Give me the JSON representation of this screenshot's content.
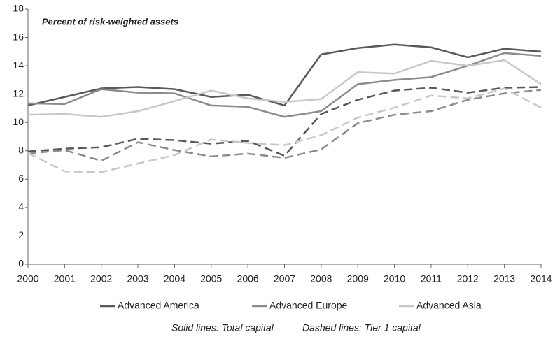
{
  "chart_data": {
    "type": "line",
    "title": "Percent of risk-weighted assets",
    "annotations": [
      "Solid lines: Total capital",
      "Dashed lines: Tier 1 capital"
    ],
    "x": [
      2000,
      2001,
      2002,
      2003,
      2004,
      2005,
      2006,
      2007,
      2008,
      2009,
      2010,
      2011,
      2012,
      2013,
      2014
    ],
    "xlim": [
      2000,
      2014
    ],
    "xticks": [
      2000,
      2001,
      2002,
      2003,
      2004,
      2005,
      2006,
      2007,
      2008,
      2009,
      2010,
      2011,
      2012,
      2013,
      2014
    ],
    "ylim": [
      0,
      18
    ],
    "yticks": [
      0,
      2,
      4,
      6,
      8,
      10,
      12,
      14,
      16,
      18
    ],
    "grid": false,
    "legend": "bottom",
    "series": [
      {
        "name": "Advanced America",
        "color": "#595959",
        "dashed": false,
        "values": [
          11.2,
          11.8,
          12.4,
          12.5,
          12.35,
          11.8,
          11.95,
          11.2,
          14.8,
          15.25,
          15.5,
          15.3,
          14.6,
          15.2,
          15.0
        ]
      },
      {
        "name": "Advanced Europe",
        "color": "#8c8c8c",
        "dashed": false,
        "values": [
          11.35,
          11.3,
          12.35,
          12.1,
          12.05,
          11.2,
          11.1,
          10.4,
          10.8,
          12.7,
          13.0,
          13.2,
          14.0,
          14.9,
          14.7
        ]
      },
      {
        "name": "Advanced Asia",
        "color": "#c8c8c8",
        "dashed": false,
        "values": [
          10.55,
          10.6,
          10.4,
          10.8,
          11.5,
          12.25,
          11.7,
          11.45,
          11.65,
          13.55,
          13.45,
          14.35,
          14.0,
          14.4,
          12.7
        ]
      },
      {
        "color": "#595959",
        "dashed": true,
        "values": [
          7.95,
          8.15,
          8.25,
          8.85,
          8.75,
          8.5,
          8.7,
          7.65,
          10.6,
          11.6,
          12.25,
          12.45,
          12.1,
          12.45,
          12.5
        ]
      },
      {
        "color": "#8c8c8c",
        "dashed": true,
        "values": [
          7.8,
          8.05,
          7.3,
          8.6,
          8.05,
          7.6,
          7.8,
          7.5,
          8.1,
          9.95,
          10.55,
          10.8,
          11.6,
          12.05,
          12.3
        ]
      },
      {
        "color": "#c8c8c8",
        "dashed": true,
        "values": [
          7.85,
          6.55,
          6.5,
          7.1,
          7.7,
          8.8,
          8.55,
          8.4,
          9.1,
          10.35,
          11.05,
          11.9,
          11.7,
          12.4,
          11.05
        ]
      }
    ]
  }
}
